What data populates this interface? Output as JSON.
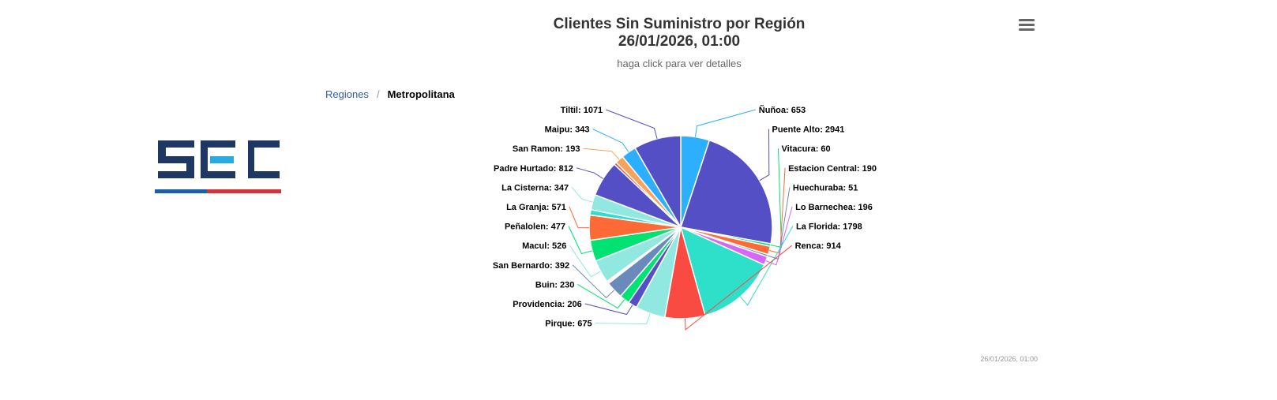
{
  "header": {
    "title_line1": "Clientes Sin Suministro por Región",
    "title_line2": "26/01/2026, 01:00",
    "subtitle": "haga click para ver detalles"
  },
  "breadcrumb": {
    "link": "Regiones",
    "separator": "/",
    "current": "Metropolitana"
  },
  "menu": {
    "icon": "hamburger-menu-icon"
  },
  "logo": {
    "text": "SEC",
    "colors": {
      "navy": "#1f3763",
      "cyan": "#29abe2",
      "blue": "#1b5fa8",
      "red": "#d2343b"
    }
  },
  "timestamp": "26/01/2026, 01:00",
  "chart_data": {
    "type": "pie",
    "title": "Clientes Sin Suministro por Región 26/01/2026, 01:00",
    "subtitle": "haga click para ver detalles",
    "slices": [
      {
        "name": "Ñuñoa",
        "value": 653,
        "color": "#2caffe"
      },
      {
        "name": "Puente Alto",
        "value": 2941,
        "color": "#544fc5"
      },
      {
        "name": "Vitacura",
        "value": 60,
        "color": "#00e272"
      },
      {
        "name": "Estacion Central",
        "value": 190,
        "color": "#fe6a35"
      },
      {
        "name": "Huechuraba",
        "value": 51,
        "color": "#6b8abc"
      },
      {
        "name": "Lo Barnechea",
        "value": 196,
        "color": "#d568fb"
      },
      {
        "name": "La Florida",
        "value": 1798,
        "color": "#2ee0ca"
      },
      {
        "name": "Renca",
        "value": 914,
        "color": "#fa4b42"
      },
      {
        "name": "Pirque",
        "value": 675,
        "color": "#91e8e1"
      },
      {
        "name": "Providencia",
        "value": 206,
        "color": "#544fc5"
      },
      {
        "name": "Buin",
        "value": 230,
        "color": "#00e272"
      },
      {
        "name": "San Bernardo",
        "value": 392,
        "color": "#6b8abc"
      },
      {
        "name": "",
        "value": 30,
        "color": "#fa4b42"
      },
      {
        "name": "",
        "value": 30,
        "color": "#fe6a35"
      },
      {
        "name": "Macul",
        "value": 526,
        "color": "#91e8e1"
      },
      {
        "name": "Peñalolen",
        "value": 477,
        "color": "#00e272"
      },
      {
        "name": "La Granja",
        "value": 571,
        "color": "#fe6a35"
      },
      {
        "name": "",
        "value": 120,
        "color": "#2ee0ca"
      },
      {
        "name": "La Cisterna",
        "value": 347,
        "color": "#91e8e1"
      },
      {
        "name": "Padre Hurtado",
        "value": 812,
        "color": "#544fc5"
      },
      {
        "name": "",
        "value": 60,
        "color": "#fa4b42"
      },
      {
        "name": "San Ramon",
        "value": 193,
        "color": "#f7a35c"
      },
      {
        "name": "Maipu",
        "value": 343,
        "color": "#2caffe"
      },
      {
        "name": "Tiltil",
        "value": 1071,
        "color": "#544fc5"
      }
    ],
    "labels": [
      {
        "text": "Ñuñoa: 653",
        "side": "right",
        "slice": 0
      },
      {
        "text": "Puente Alto: 2941",
        "side": "right",
        "slice": 1
      },
      {
        "text": "Vitacura: 60",
        "side": "right",
        "slice": 2
      },
      {
        "text": "Estacion Central: 190",
        "side": "right",
        "slice": 3
      },
      {
        "text": "Huechuraba: 51",
        "side": "right",
        "slice": 4
      },
      {
        "text": "Lo Barnechea: 196",
        "side": "right",
        "slice": 5
      },
      {
        "text": "La Florida: 1798",
        "side": "right",
        "slice": 6
      },
      {
        "text": "Renca: 914",
        "side": "right",
        "slice": 7
      },
      {
        "text": "Pirque: 675",
        "side": "left",
        "slice": 8
      },
      {
        "text": "Providencia: 206",
        "side": "left",
        "slice": 9
      },
      {
        "text": "Buin: 230",
        "side": "left",
        "slice": 10
      },
      {
        "text": "San Bernardo: 392",
        "side": "left",
        "slice": 11
      },
      {
        "text": "Macul: 526",
        "side": "left",
        "slice": 14
      },
      {
        "text": "Peñalolen: 477",
        "side": "left",
        "slice": 15
      },
      {
        "text": "La Granja: 571",
        "side": "left",
        "slice": 16
      },
      {
        "text": "La Cisterna: 347",
        "side": "left",
        "slice": 18
      },
      {
        "text": "Padre Hurtado: 812",
        "side": "left",
        "slice": 19
      },
      {
        "text": "San Ramon: 193",
        "side": "left",
        "slice": 21
      },
      {
        "text": "Maipu: 343",
        "side": "left",
        "slice": 22
      },
      {
        "text": "Tiltil: 1071",
        "side": "left",
        "slice": 23
      }
    ]
  }
}
